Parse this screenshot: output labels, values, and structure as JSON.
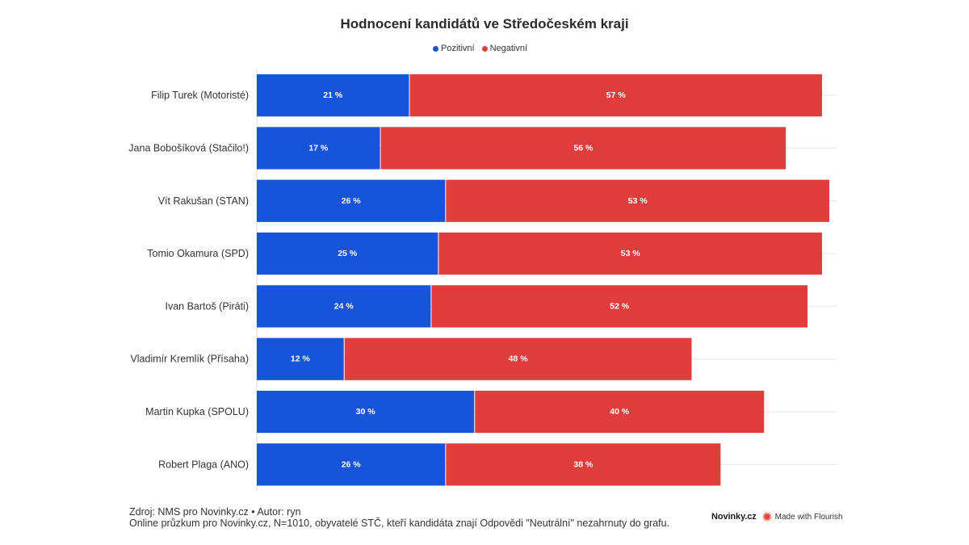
{
  "chart_data": {
    "type": "bar",
    "orientation": "horizontal",
    "stacked": true,
    "title": "Hodnocení kandidátů ve Středočeském kraji",
    "categories": [
      "Filip Turek (Motoristé)",
      "Jana Bobošíková (Stačilo!)",
      "Vít Rakušan (STAN)",
      "Tomio Okamura (SPD)",
      "Ivan Bartoš (Piráti)",
      "Vladimír Kremlík (Přísaha)",
      "Martin Kupka (SPOLU)",
      "Robert Plaga (ANO)"
    ],
    "series": [
      {
        "name": "Pozitivní",
        "color": "#1654D9",
        "values": [
          21,
          17,
          26,
          25,
          24,
          12,
          30,
          26
        ]
      },
      {
        "name": "Negativní",
        "color": "#E23D3D",
        "values": [
          57,
          56,
          53,
          53,
          52,
          48,
          40,
          38
        ]
      }
    ],
    "value_suffix": " %",
    "xlim": [
      0,
      80
    ],
    "grid": true,
    "data_labels": true,
    "legend_position": "top-center"
  },
  "footer": {
    "source": "Zdroj: NMS pro Novinky.cz • Autor: ryn",
    "note": "Online průzkum pro Novinky.cz, N=1010, obyvatelé STČ, kteří kandidáta znají Odpovědi \"Neutrální\" nezahrnuty do grafu."
  },
  "branding": {
    "publisher_logo": "Novinky.cz",
    "made_with": "Made with Flourish",
    "flourish_icon": "flourish-logo-icon",
    "flourish_color": "#E8463A"
  }
}
